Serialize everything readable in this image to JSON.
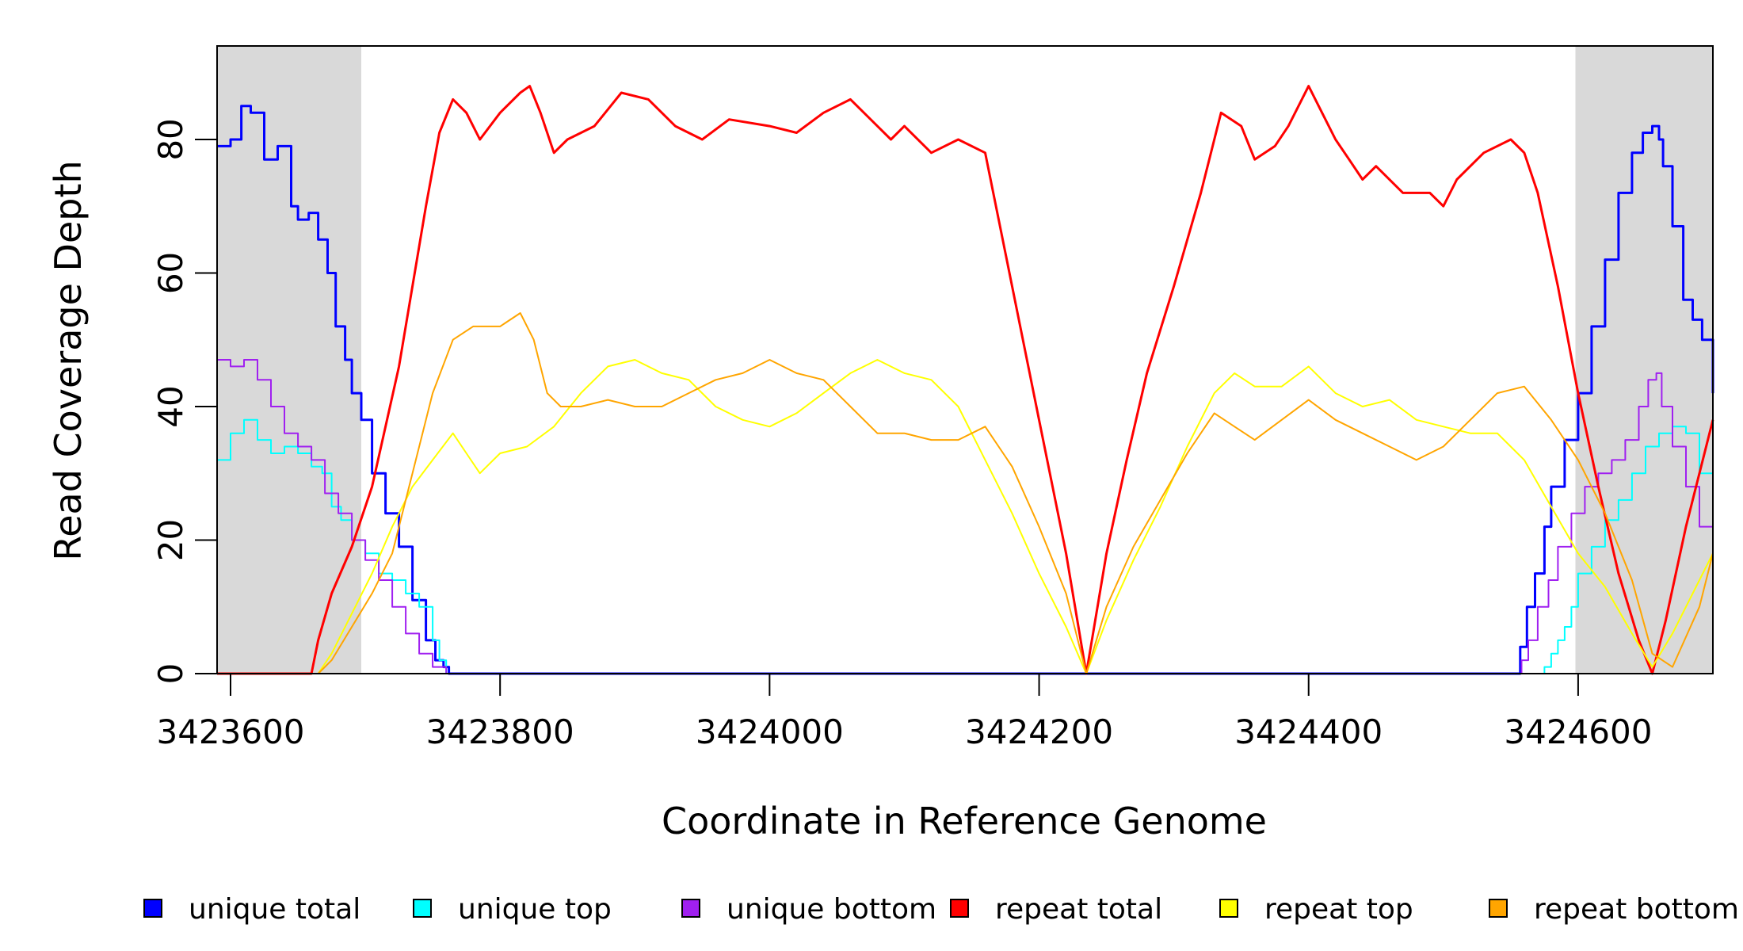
{
  "chart_data": {
    "type": "line",
    "title": "",
    "xlabel": "Coordinate in Reference Genome",
    "ylabel": "Read Coverage Depth",
    "xlim": [
      3423590,
      3424700
    ],
    "ylim": [
      0,
      94
    ],
    "x_ticks": [
      3423600,
      3423800,
      3424000,
      3424200,
      3424400,
      3424600
    ],
    "x_tick_labels": [
      "3423600",
      "3423800",
      "3424000",
      "3424200",
      "3424400",
      "3424600"
    ],
    "y_ticks": [
      0,
      20,
      40,
      60,
      80
    ],
    "y_tick_labels": [
      "0",
      "20",
      "40",
      "60",
      "80"
    ],
    "shaded_regions": [
      {
        "x_start": 3423590,
        "x_end": 3423697
      },
      {
        "x_start": 3424598,
        "x_end": 3424700
      }
    ],
    "shade_color": "#d9d9d9",
    "legend_placement": "bottom",
    "series": [
      {
        "name": "unique total",
        "color": "#0000ff",
        "width": 3,
        "step": true,
        "x": [
          3423590,
          3423600,
          3423608,
          3423615,
          3423625,
          3423635,
          3423645,
          3423650,
          3423658,
          3423665,
          3423672,
          3423678,
          3423685,
          3423690,
          3423697,
          3423705,
          3423715,
          3423725,
          3423735,
          3423745,
          3423752,
          3423758,
          3423762,
          3424555,
          3424557,
          3424562,
          3424568,
          3424575,
          3424580,
          3424590,
          3424600,
          3424610,
          3424620,
          3424630,
          3424640,
          3424648,
          3424655,
          3424660,
          3424663,
          3424670,
          3424678,
          3424685,
          3424692,
          3424700
        ],
        "values": [
          79,
          80,
          85,
          84,
          77,
          79,
          70,
          68,
          69,
          65,
          60,
          52,
          47,
          42,
          38,
          30,
          24,
          19,
          11,
          5,
          2,
          1,
          0,
          0,
          4,
          10,
          15,
          22,
          28,
          35,
          42,
          52,
          62,
          72,
          78,
          81,
          82,
          80,
          76,
          67,
          56,
          53,
          50,
          42
        ]
      },
      {
        "name": "unique top",
        "color": "#00ffff",
        "width": 2,
        "step": true,
        "x": [
          3423590,
          3423600,
          3423610,
          3423620,
          3423630,
          3423640,
          3423650,
          3423660,
          3423668,
          3423675,
          3423682,
          3423690,
          3423700,
          3423710,
          3423720,
          3423730,
          3423740,
          3423750,
          3423755,
          3423760,
          3424570,
          3424575,
          3424580,
          3424585,
          3424590,
          3424595,
          3424600,
          3424610,
          3424620,
          3424630,
          3424640,
          3424650,
          3424660,
          3424670,
          3424680,
          3424690,
          3424700
        ],
        "values": [
          32,
          36,
          38,
          35,
          33,
          34,
          33,
          31,
          30,
          25,
          23,
          20,
          18,
          15,
          14,
          12,
          10,
          5,
          2,
          0,
          0,
          1,
          3,
          5,
          7,
          10,
          15,
          19,
          23,
          26,
          30,
          34,
          36,
          37,
          36,
          30,
          24
        ]
      },
      {
        "name": "unique bottom",
        "color": "#a020f0",
        "width": 2,
        "step": true,
        "x": [
          3423590,
          3423600,
          3423610,
          3423620,
          3423630,
          3423640,
          3423650,
          3423660,
          3423670,
          3423680,
          3423690,
          3423700,
          3423710,
          3423720,
          3423730,
          3423740,
          3423750,
          3423760,
          3424555,
          3424558,
          3424563,
          3424570,
          3424578,
          3424585,
          3424595,
          3424605,
          3424615,
          3424625,
          3424635,
          3424645,
          3424652,
          3424658,
          3424662,
          3424670,
          3424680,
          3424690,
          3424700
        ],
        "values": [
          47,
          46,
          47,
          44,
          40,
          36,
          34,
          32,
          27,
          24,
          20,
          17,
          14,
          10,
          6,
          3,
          1,
          0,
          0,
          2,
          5,
          10,
          14,
          19,
          24,
          28,
          30,
          32,
          35,
          40,
          44,
          45,
          40,
          34,
          28,
          22,
          18
        ]
      },
      {
        "name": "repeat total",
        "color": "#ff0000",
        "width": 3,
        "step": false,
        "x": [
          3423590,
          3423660,
          3423665,
          3423675,
          3423690,
          3423705,
          3423715,
          3423725,
          3423735,
          3423745,
          3423755,
          3423765,
          3423775,
          3423785,
          3423800,
          3423815,
          3423822,
          3423830,
          3423840,
          3423850,
          3423870,
          3423890,
          3423910,
          3423930,
          3423950,
          3423970,
          3424000,
          3424020,
          3424040,
          3424060,
          3424080,
          3424090,
          3424100,
          3424120,
          3424140,
          3424160,
          3424180,
          3424200,
          3424220,
          3424235,
          3424250,
          3424265,
          3424280,
          3424300,
          3424320,
          3424335,
          3424350,
          3424360,
          3424375,
          3424385,
          3424400,
          3424410,
          3424420,
          3424430,
          3424440,
          3424450,
          3424470,
          3424490,
          3424500,
          3424510,
          3424530,
          3424550,
          3424560,
          3424570,
          3424585,
          3424600,
          3424615,
          3424630,
          3424645,
          3424655,
          3424665,
          3424680,
          3424700
        ],
        "values": [
          0,
          0,
          5,
          12,
          19,
          28,
          37,
          46,
          58,
          70,
          81,
          86,
          84,
          80,
          84,
          87,
          88,
          84,
          78,
          80,
          82,
          87,
          86,
          82,
          80,
          83,
          82,
          81,
          84,
          86,
          82,
          80,
          82,
          78,
          80,
          78,
          58,
          38,
          18,
          0,
          18,
          32,
          45,
          58,
          72,
          84,
          82,
          77,
          79,
          82,
          88,
          84,
          80,
          77,
          74,
          76,
          72,
          72,
          70,
          74,
          78,
          80,
          78,
          72,
          58,
          42,
          28,
          15,
          5,
          0,
          8,
          22,
          38
        ]
      },
      {
        "name": "repeat top",
        "color": "#ffff00",
        "width": 2,
        "step": false,
        "x": [
          3423590,
          3423665,
          3423675,
          3423690,
          3423705,
          3423720,
          3423735,
          3423750,
          3423765,
          3423775,
          3423785,
          3423800,
          3423820,
          3423840,
          3423860,
          3423880,
          3423900,
          3423920,
          3423940,
          3423960,
          3423980,
          3424000,
          3424020,
          3424040,
          3424060,
          3424080,
          3424100,
          3424120,
          3424140,
          3424160,
          3424180,
          3424200,
          3424220,
          3424235,
          3424250,
          3424270,
          3424290,
          3424310,
          3424330,
          3424345,
          3424360,
          3424380,
          3424400,
          3424420,
          3424440,
          3424460,
          3424480,
          3424500,
          3424520,
          3424540,
          3424560,
          3424580,
          3424600,
          3424620,
          3424640,
          3424655,
          3424670,
          3424690,
          3424700
        ],
        "values": [
          0,
          0,
          3,
          9,
          15,
          22,
          28,
          32,
          36,
          33,
          30,
          33,
          34,
          37,
          42,
          46,
          47,
          45,
          44,
          40,
          38,
          37,
          39,
          42,
          45,
          47,
          45,
          44,
          40,
          32,
          24,
          15,
          7,
          0,
          8,
          17,
          25,
          34,
          42,
          45,
          43,
          43,
          46,
          42,
          40,
          41,
          38,
          37,
          36,
          36,
          32,
          25,
          18,
          13,
          6,
          1,
          6,
          14,
          18
        ]
      },
      {
        "name": "repeat bottom",
        "color": "#ffa500",
        "width": 2,
        "step": false,
        "x": [
          3423590,
          3423665,
          3423675,
          3423690,
          3423705,
          3423720,
          3423735,
          3423750,
          3423765,
          3423780,
          3423800,
          3423815,
          3423825,
          3423835,
          3423845,
          3423860,
          3423880,
          3423900,
          3423920,
          3423940,
          3423960,
          3423980,
          3424000,
          3424020,
          3424040,
          3424060,
          3424080,
          3424100,
          3424120,
          3424140,
          3424160,
          3424180,
          3424200,
          3424220,
          3424235,
          3424250,
          3424270,
          3424290,
          3424310,
          3424330,
          3424345,
          3424360,
          3424380,
          3424400,
          3424420,
          3424440,
          3424460,
          3424480,
          3424500,
          3424520,
          3424540,
          3424560,
          3424580,
          3424600,
          3424620,
          3424640,
          3424655,
          3424670,
          3424690,
          3424700
        ],
        "values": [
          0,
          0,
          2,
          7,
          12,
          18,
          30,
          42,
          50,
          52,
          52,
          54,
          50,
          42,
          40,
          40,
          41,
          40,
          40,
          42,
          44,
          45,
          47,
          45,
          44,
          40,
          36,
          36,
          35,
          35,
          37,
          31,
          22,
          12,
          0,
          10,
          19,
          26,
          33,
          39,
          37,
          35,
          38,
          41,
          38,
          36,
          34,
          32,
          34,
          38,
          42,
          43,
          38,
          32,
          24,
          14,
          3,
          1,
          10,
          18
        ]
      }
    ]
  }
}
